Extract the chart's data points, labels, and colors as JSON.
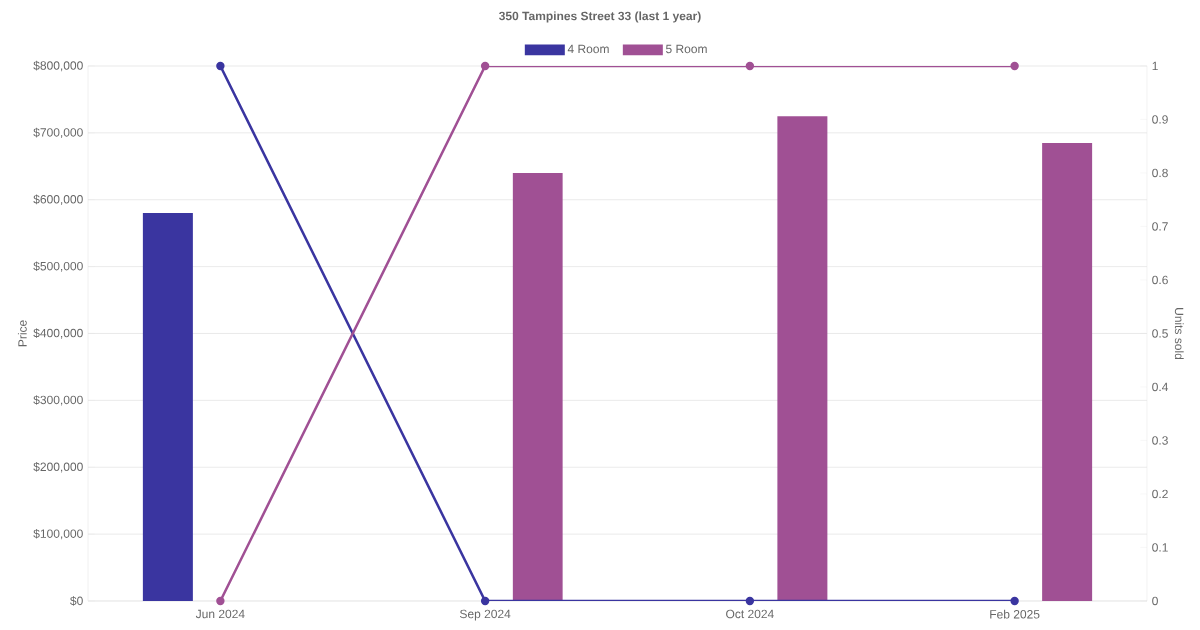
{
  "chart_data": {
    "type": "bar",
    "title": "350 Tampines Street 33 (last 1 year)",
    "ylabel": "Price",
    "y2label": "Units sold",
    "categories": [
      "Jun 2024",
      "Sep 2024",
      "Oct 2024",
      "Feb 2025"
    ],
    "series": [
      {
        "name": "4 Room",
        "color": "#3a35a0",
        "values": [
          580000,
          null,
          null,
          null
        ]
      },
      {
        "name": "5 Room",
        "color": "#a05094",
        "values": [
          null,
          640000,
          725000,
          685000
        ]
      },
      {
        "type": "line",
        "axis": "y2",
        "color": "#3a35a0",
        "values": [
          1,
          0,
          0,
          0
        ]
      },
      {
        "type": "line",
        "axis": "y2",
        "color": "#a05094",
        "values": [
          0,
          1,
          1,
          1
        ]
      }
    ],
    "ylim": [
      0,
      800000
    ],
    "yticks": [
      {
        "value": 0,
        "label": "$0"
      },
      {
        "value": 100000,
        "label": "$100,000"
      },
      {
        "value": 200000,
        "label": "$200,000"
      },
      {
        "value": 300000,
        "label": "$300,000"
      },
      {
        "value": 400000,
        "label": "$400,000"
      },
      {
        "value": 500000,
        "label": "$500,000"
      },
      {
        "value": 600000,
        "label": "$600,000"
      },
      {
        "value": 700000,
        "label": "$700,000"
      },
      {
        "value": 800000,
        "label": "$800,000"
      }
    ],
    "y2lim": [
      0,
      1
    ],
    "y2ticks": [
      0,
      0.1,
      0.2,
      0.3,
      0.4,
      0.5,
      0.6,
      0.7,
      0.8,
      0.9,
      1
    ],
    "grid": "y",
    "legend": "top",
    "marker": "circle"
  }
}
